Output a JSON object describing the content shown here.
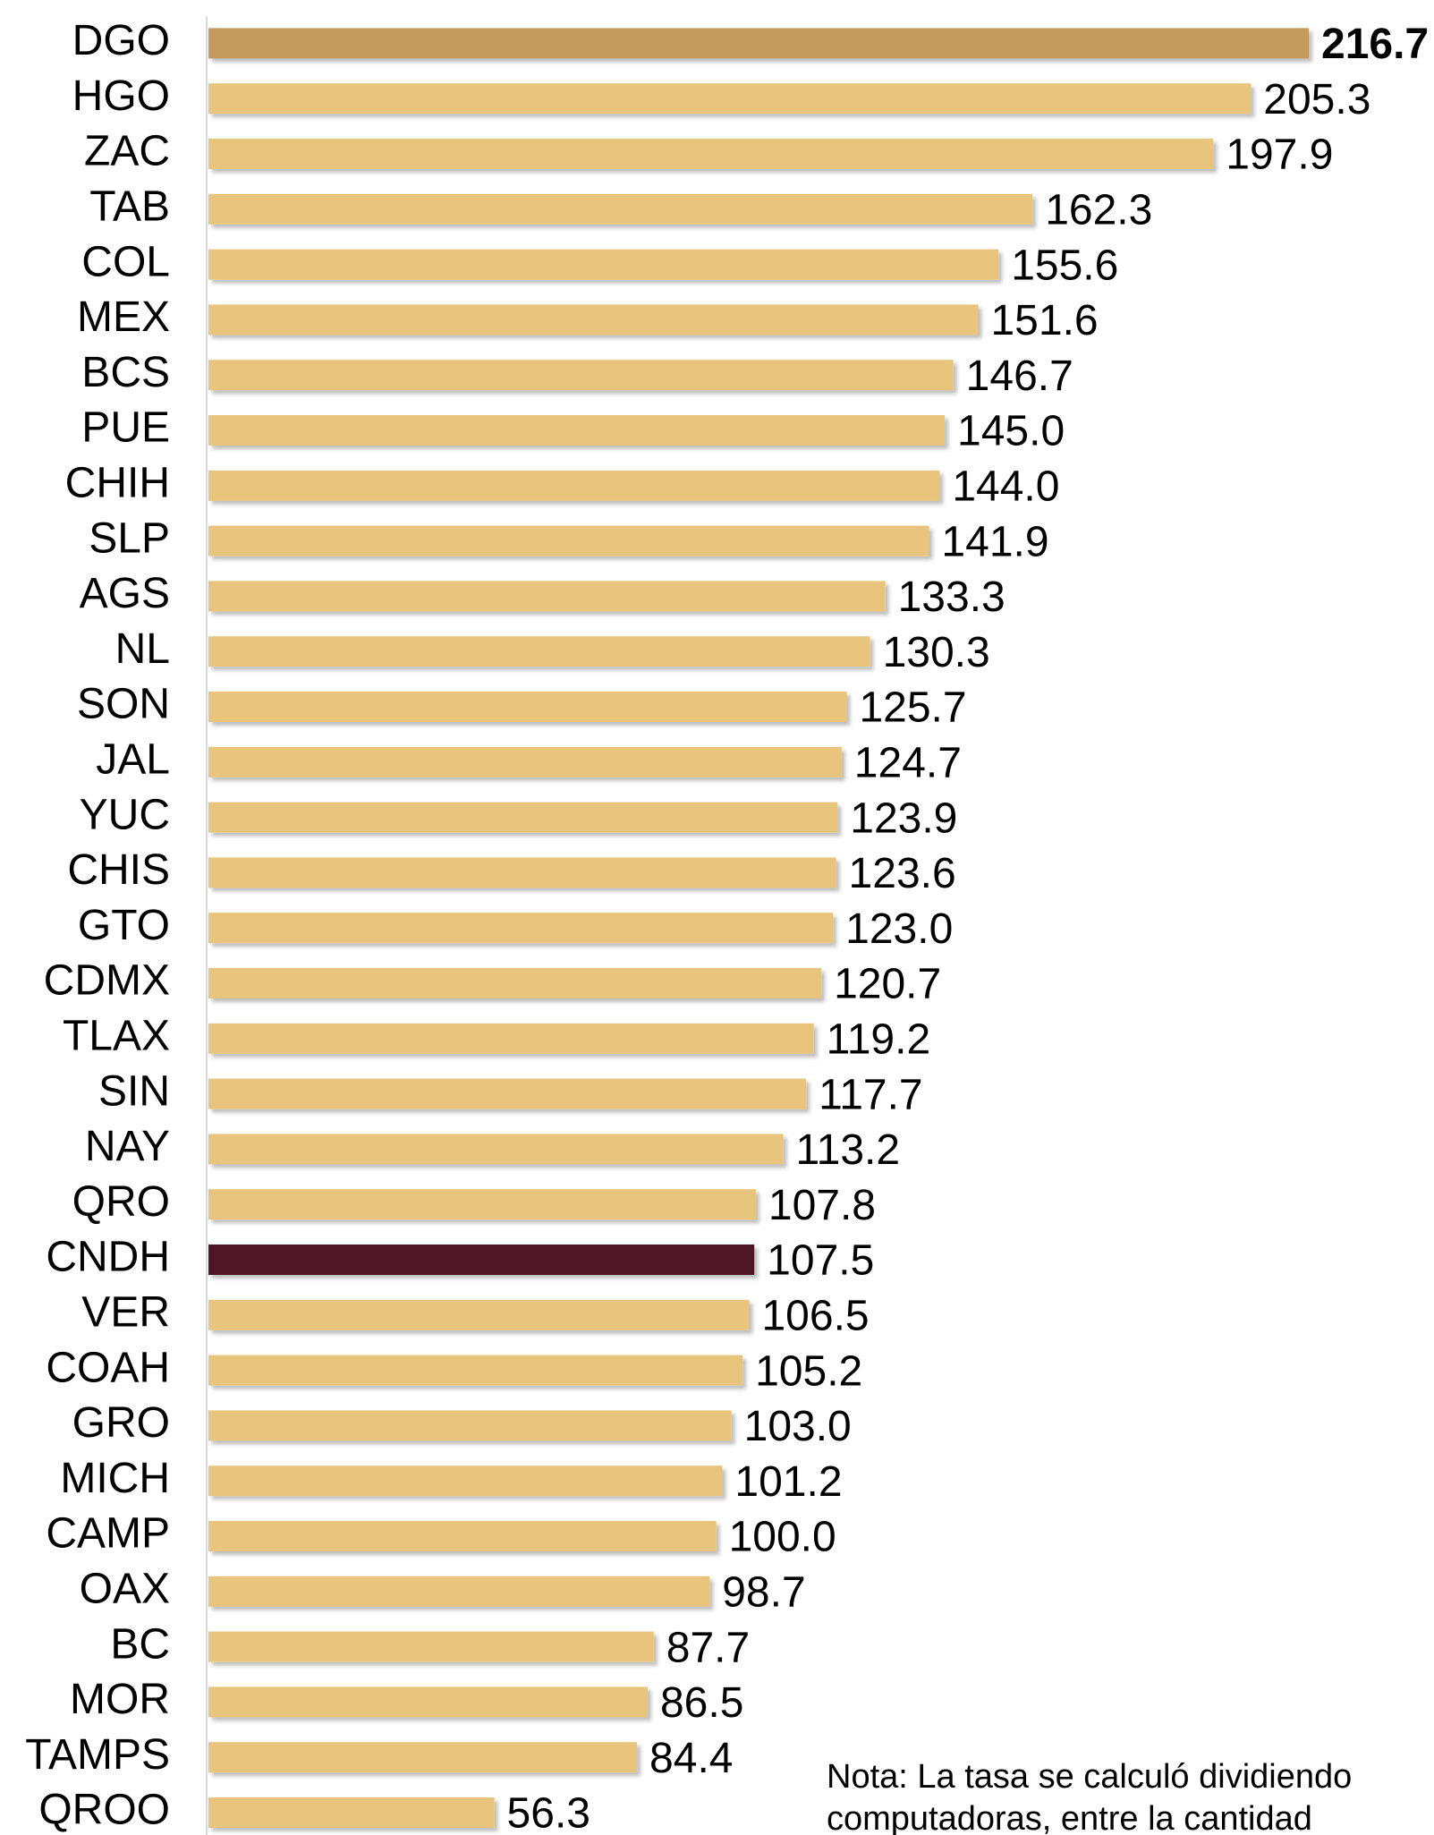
{
  "chart_data": {
    "type": "barh",
    "categories": [
      "DGO",
      "HGO",
      "ZAC",
      "TAB",
      "COL",
      "MEX",
      "BCS",
      "PUE",
      "CHIH",
      "SLP",
      "AGS",
      "NL",
      "SON",
      "JAL",
      "YUC",
      "CHIS",
      "GTO",
      "CDMX",
      "TLAX",
      "SIN",
      "NAY",
      "QRO",
      "CNDH",
      "VER",
      "COAH",
      "GRO",
      "MICH",
      "CAMP",
      "OAX",
      "BC",
      "MOR",
      "TAMPS",
      "QROO"
    ],
    "values": [
      216.7,
      205.3,
      197.9,
      162.3,
      155.6,
      151.6,
      146.7,
      145.0,
      144.0,
      141.9,
      133.3,
      130.3,
      125.7,
      124.7,
      123.9,
      123.6,
      123.0,
      120.7,
      119.2,
      117.7,
      113.2,
      107.8,
      107.5,
      106.5,
      105.2,
      103.0,
      101.2,
      100.0,
      98.7,
      87.7,
      86.5,
      84.4,
      56.3
    ],
    "value_labels": [
      "216.7",
      "205.3",
      "197.9",
      "162.3",
      "155.6",
      "151.6",
      "146.7",
      "145.0",
      "144.0",
      "141.9",
      "133.3",
      "130.3",
      "125.7",
      "124.7",
      "123.9",
      "123.6",
      "123.0",
      "120.7",
      "119.2",
      "117.7",
      "113.2",
      "107.8",
      "107.5",
      "106.5",
      "105.2",
      "103.0",
      "101.2",
      "100.0",
      "98.7",
      "87.7",
      "86.5",
      "84.4",
      "56.3"
    ],
    "colors": [
      "#c49a5e",
      "#e8c47c",
      "#e8c47c",
      "#e8c47c",
      "#e8c47c",
      "#e8c47c",
      "#e8c47c",
      "#e8c47c",
      "#e8c47c",
      "#e8c47c",
      "#e8c47c",
      "#e8c47c",
      "#e8c47c",
      "#e8c47c",
      "#e8c47c",
      "#e8c47c",
      "#e8c47c",
      "#e8c47c",
      "#e8c47c",
      "#e8c47c",
      "#e8c47c",
      "#e8c47c",
      "#4f1428",
      "#e8c47c",
      "#e8c47c",
      "#e8c47c",
      "#e8c47c",
      "#e8c47c",
      "#e8c47c",
      "#e8c47c",
      "#e8c47c",
      "#e8c47c",
      "#e8c47c"
    ],
    "annotations": [
      "Nota: La tasa se calculó dividiendo",
      "computadoras, entre la cantidad"
    ]
  }
}
